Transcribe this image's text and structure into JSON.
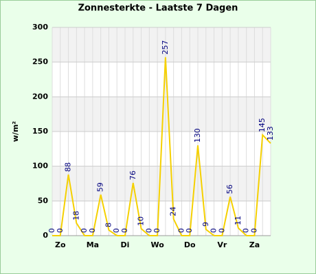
{
  "chart_data": {
    "type": "line",
    "title": "Zonnesterkte - Laatste 7 Dagen",
    "y_label": "w/m²",
    "categories": [
      null,
      "Zo",
      null,
      null,
      null,
      "Ma",
      null,
      null,
      null,
      "Di",
      null,
      null,
      null,
      "Wo",
      null,
      null,
      null,
      "Do",
      null,
      null,
      null,
      "Vr",
      null,
      null,
      null,
      "Za",
      null,
      null
    ],
    "series": [
      {
        "name": "Zonnesterkte",
        "color": "#f5d000",
        "values": [
          0,
          0,
          88,
          18,
          0,
          0,
          59,
          8,
          0,
          0,
          76,
          10,
          0,
          0,
          257,
          24,
          0,
          0,
          130,
          9,
          0,
          0,
          56,
          11,
          0,
          0,
          145,
          133
        ]
      }
    ],
    "ylim": [
      0,
      300
    ],
    "yticks": [
      0,
      50,
      100,
      150,
      200,
      250,
      300
    ],
    "grid": true
  }
}
